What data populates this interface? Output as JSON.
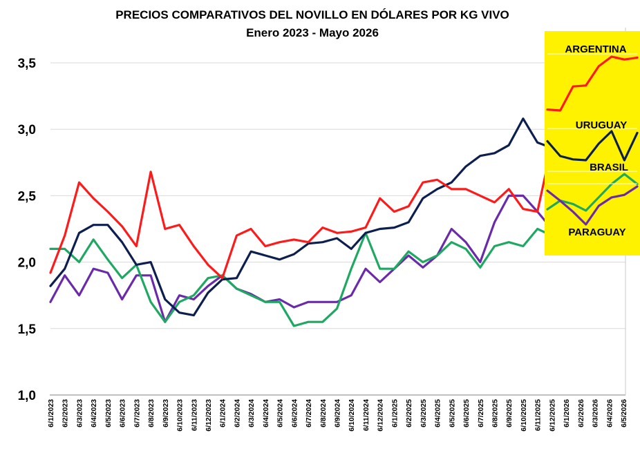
{
  "chart_data": {
    "type": "line",
    "title": "PRECIOS COMPARATIVOS DEL NOVILLO EN DÓLARES POR KG VIVO",
    "subtitle": "Enero 2023 - Mayo 2026",
    "xlabel": "",
    "ylabel": "",
    "ylim": [
      1.0,
      3.5
    ],
    "grid": true,
    "y_ticks": [
      1.0,
      1.5,
      2.0,
      2.5,
      3.0,
      3.5
    ],
    "y_tick_labels": [
      "1,0",
      "1,5",
      "2,0",
      "2,5",
      "3,0",
      "3,5"
    ],
    "x": [
      "6/1/2023",
      "6/2/2023",
      "6/3/2023",
      "6/4/2023",
      "6/5/2023",
      "6/6/2023",
      "6/7/2023",
      "6/8/2023",
      "6/9/2023",
      "6/10/2023",
      "6/11/2023",
      "6/12/2023",
      "6/1/2024",
      "6/2/2024",
      "6/3/2024",
      "6/4/2024",
      "6/5/2024",
      "6/6/2024",
      "6/7/2024",
      "6/8/2024",
      "6/9/2024",
      "6/10/2024",
      "6/11/2024",
      "6/12/2024",
      "6/1/2025",
      "6/2/2025",
      "6/3/2025",
      "6/4/2025",
      "6/5/2025",
      "6/6/2025",
      "6/7/2025",
      "6/8/2025",
      "6/9/2025",
      "6/10/2025",
      "6/11/2025",
      "6/12/2025",
      "6/1/2026",
      "6/2/2026",
      "6/3/2026",
      "6/4/2026",
      "6/5/2026"
    ],
    "legend": {
      "placement": "right",
      "background": "#FFF200",
      "entries": [
        "ARGENTINA",
        "URUGUAY",
        "BRASIL",
        "PARAGUAY"
      ]
    },
    "series": [
      {
        "name": "ARGENTINA",
        "color": "#FF1A1A",
        "values": [
          1.92,
          2.2,
          2.6,
          2.48,
          2.38,
          2.27,
          2.12,
          2.68,
          2.25,
          2.28,
          2.12,
          1.98,
          1.88,
          2.2,
          2.25,
          2.12,
          2.15,
          2.17,
          2.15,
          2.26,
          2.22,
          2.23,
          2.26,
          2.48,
          2.38,
          2.42,
          2.6,
          2.62,
          2.55,
          2.55,
          2.5,
          2.45,
          2.55,
          2.4,
          2.38,
          2.88,
          2.9,
          3.3,
          3.5,
          3.44,
          3.48
        ]
      },
      {
        "name": "URUGUAY",
        "color": "#0D1F4F",
        "values": [
          1.82,
          1.95,
          2.22,
          2.28,
          2.28,
          2.15,
          1.98,
          2.0,
          1.72,
          1.62,
          1.6,
          1.77,
          1.87,
          1.88,
          2.08,
          2.05,
          2.02,
          2.06,
          2.14,
          2.15,
          2.18,
          2.1,
          2.22,
          2.25,
          2.26,
          2.3,
          2.48,
          2.55,
          2.6,
          2.72,
          2.8,
          2.82,
          2.88,
          3.08,
          2.9,
          2.86,
          2.85,
          3.05,
          3.2,
          2.85,
          3.18
        ]
      },
      {
        "name": "BRASIL",
        "color": "#1FA862",
        "values": [
          2.1,
          2.1,
          2.0,
          2.17,
          2.02,
          1.88,
          1.98,
          1.7,
          1.55,
          1.7,
          1.75,
          1.88,
          1.9,
          1.8,
          1.75,
          1.7,
          1.7,
          1.52,
          1.55,
          1.55,
          1.65,
          1.95,
          2.22,
          1.95,
          1.95,
          2.08,
          2.0,
          2.05,
          2.15,
          2.1,
          1.96,
          2.12,
          2.15,
          2.12,
          2.25,
          2.2,
          2.1,
          2.3,
          2.5,
          2.65,
          2.5
        ]
      },
      {
        "name": "PARAGUAY",
        "color": "#6A2BAB",
        "values": [
          1.7,
          1.9,
          1.75,
          1.95,
          1.92,
          1.72,
          1.9,
          1.9,
          1.55,
          1.75,
          1.72,
          1.82,
          1.9,
          1.8,
          1.76,
          1.7,
          1.72,
          1.66,
          1.7,
          1.7,
          1.7,
          1.75,
          1.95,
          1.85,
          1.95,
          2.05,
          1.96,
          2.05,
          2.25,
          2.15,
          2.0,
          2.3,
          2.5,
          2.5,
          2.38,
          2.25,
          2.1,
          2.32,
          2.42,
          2.45,
          2.55
        ]
      }
    ]
  }
}
